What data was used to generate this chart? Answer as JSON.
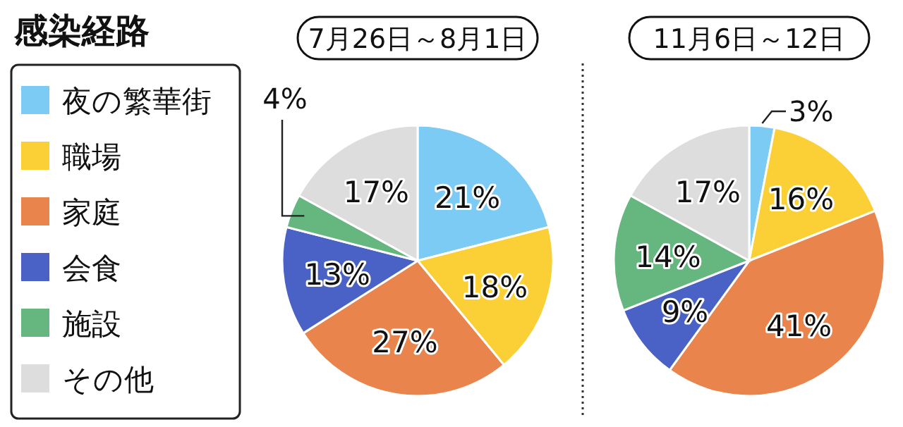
{
  "chart_data": [
    {
      "type": "pie",
      "title": "感染経路",
      "subtitle": "7月26日～8月1日",
      "legend": "left",
      "categories": [
        "夜の繁華街",
        "職場",
        "家庭",
        "会食",
        "施設",
        "その他"
      ],
      "values": [
        21,
        18,
        27,
        13,
        4,
        17
      ],
      "value_labels": [
        "21%",
        "18%",
        "27%",
        "13%",
        "4%",
        "17%"
      ],
      "colors": [
        "#7ccbf4",
        "#fbd036",
        "#e8844c",
        "#4a62c6",
        "#66b77f",
        "#dddddd"
      ]
    },
    {
      "type": "pie",
      "subtitle": "11月6日～12日",
      "categories": [
        null,
        null,
        null,
        null,
        null,
        null
      ],
      "values": [
        3,
        16,
        41,
        9,
        14,
        17
      ],
      "value_labels": [
        "3%",
        "16%",
        "41%",
        "9%",
        "14%",
        "17%"
      ],
      "colors": [
        "#7ccbf4",
        "#fbd036",
        "#e8844c",
        "#4a62c6",
        "#66b77f",
        "#dddddd"
      ]
    }
  ]
}
